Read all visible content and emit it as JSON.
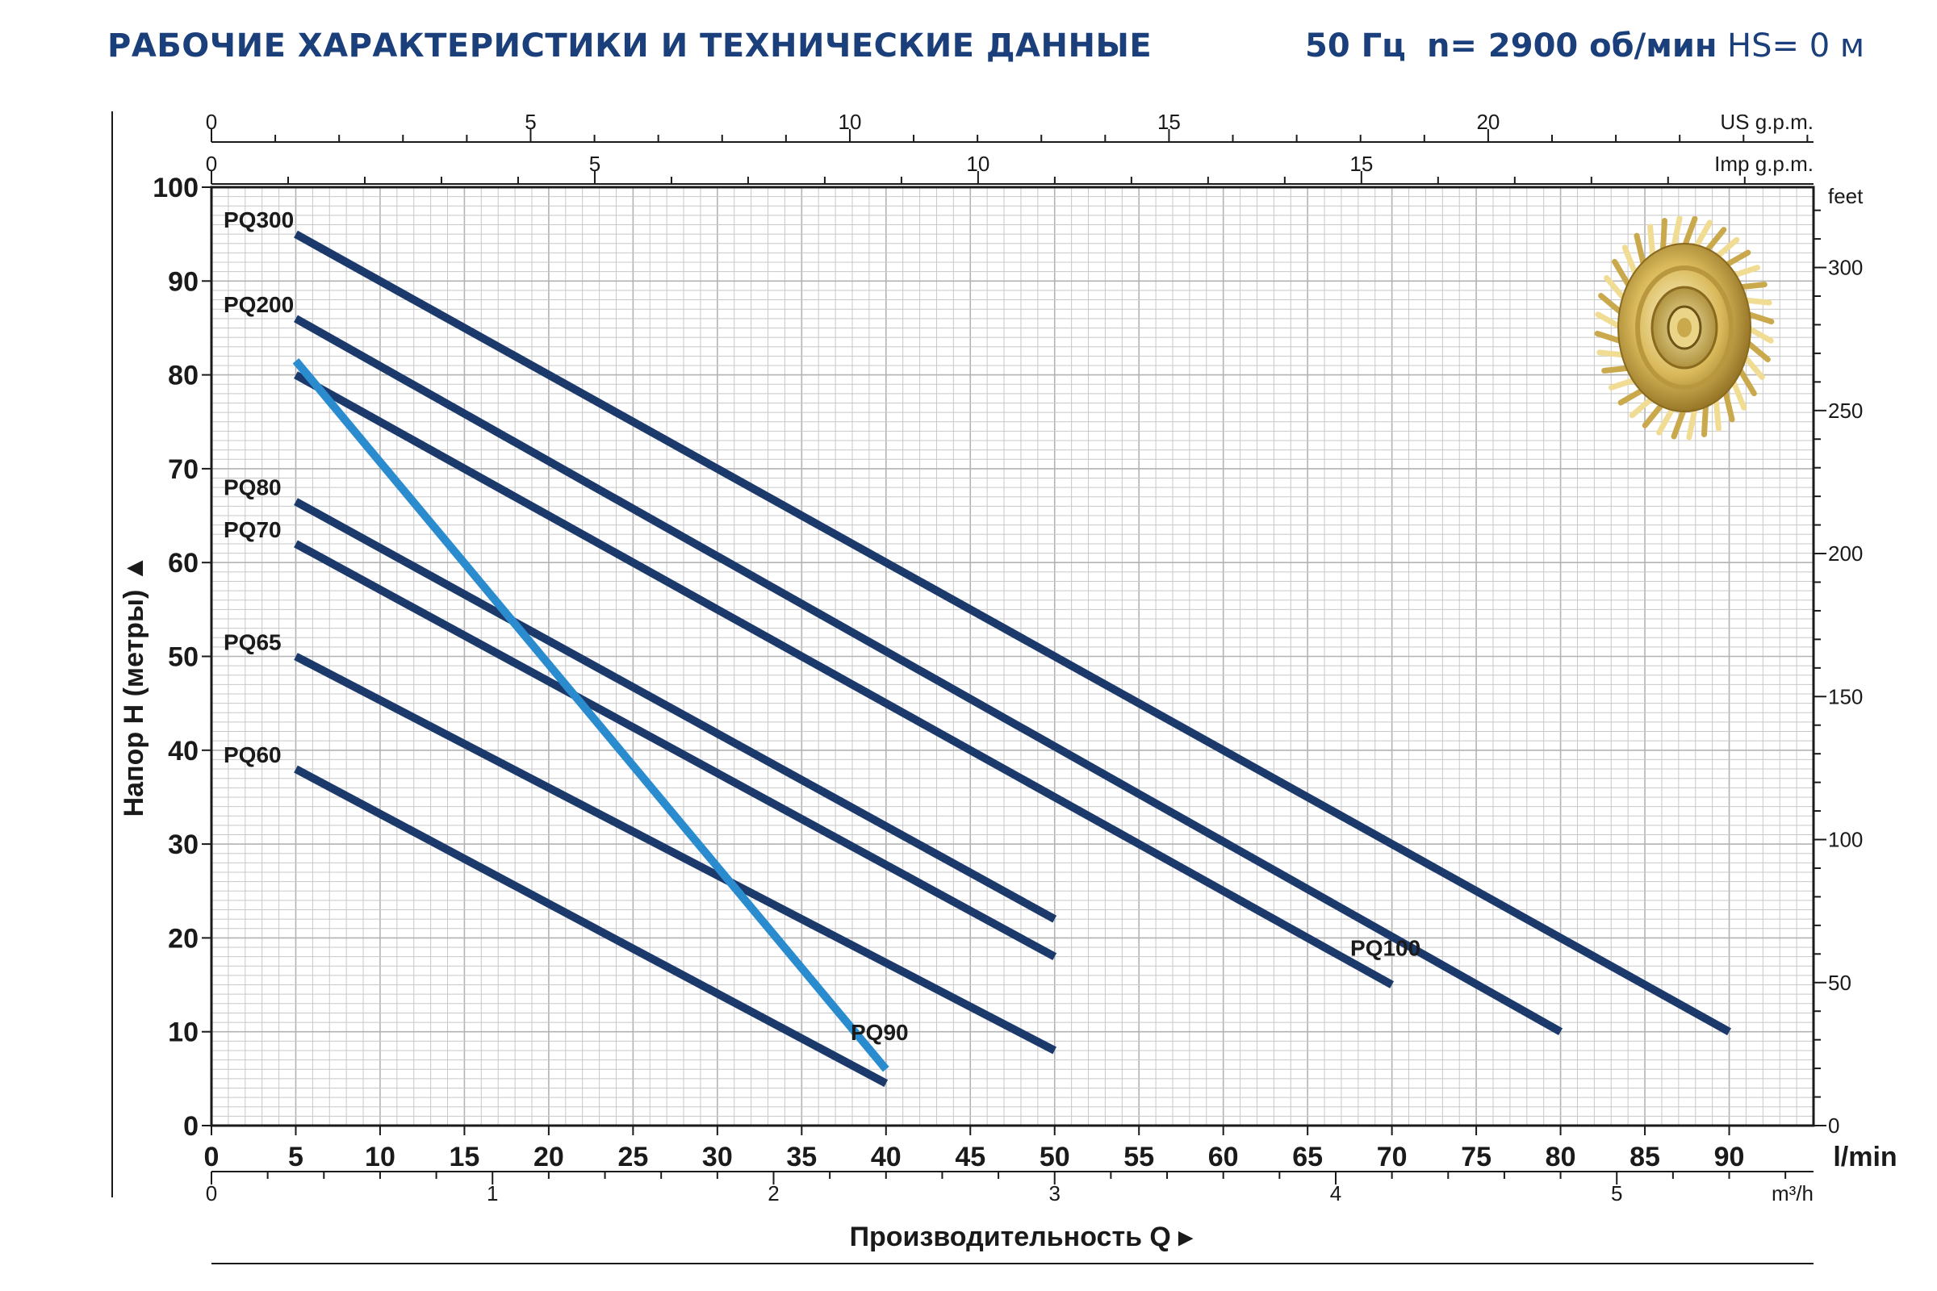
{
  "header": {
    "title": "РАБОЧИЕ ХАРАКТЕРИСТИКИ И ТЕХНИЧЕСКИЕ ДАННЫЕ",
    "frequency": "50 Гц",
    "speed": "n= 2900 об/мин",
    "hs": "HS= 0 м"
  },
  "colors": {
    "title": "#1a3f7a",
    "series_dark": "#1b3a6b",
    "series_light": "#2a8ccf",
    "grid": "#c8c8c8",
    "axis": "#1a1a1a"
  },
  "chart_data": {
    "type": "line",
    "xlabel": "Производительность Q",
    "ylabel": "Напор H (метры)",
    "xunit": "l/min",
    "xlim": [
      0,
      95
    ],
    "ylim": [
      0,
      100
    ],
    "x_ticks": [
      0,
      5,
      10,
      15,
      20,
      25,
      30,
      35,
      40,
      45,
      50,
      55,
      60,
      65,
      70,
      75,
      80,
      85,
      90
    ],
    "y_ticks": [
      0,
      10,
      20,
      30,
      40,
      50,
      60,
      70,
      80,
      90,
      100
    ],
    "secondary_axes": {
      "us_gpm": {
        "label": "US g.p.m.",
        "ticks": [
          0,
          5,
          10,
          15,
          20
        ]
      },
      "imp_gpm": {
        "label": "Imp g.p.m.",
        "ticks": [
          0,
          5,
          10,
          15
        ]
      },
      "feet": {
        "label": "feet",
        "ticks": [
          0,
          50,
          100,
          150,
          200,
          250,
          300
        ]
      },
      "m3h": {
        "label": "m³/h",
        "ticks": [
          0,
          1,
          2,
          3,
          4,
          5
        ]
      }
    },
    "grid": true,
    "series": [
      {
        "name": "PQ300",
        "color": "dark",
        "label_pos": "left",
        "points": [
          [
            5,
            95
          ],
          [
            90,
            10
          ]
        ]
      },
      {
        "name": "PQ200",
        "color": "dark",
        "label_pos": "left",
        "points": [
          [
            5,
            86
          ],
          [
            80,
            10
          ]
        ]
      },
      {
        "name": "PQ100",
        "color": "dark",
        "label_pos": "end",
        "points": [
          [
            5,
            80
          ],
          [
            70,
            15
          ]
        ]
      },
      {
        "name": "PQ80",
        "color": "dark",
        "label_pos": "left",
        "points": [
          [
            5,
            66.5
          ],
          [
            50,
            22
          ]
        ]
      },
      {
        "name": "PQ70",
        "color": "dark",
        "label_pos": "left",
        "points": [
          [
            5,
            62
          ],
          [
            50,
            18
          ]
        ]
      },
      {
        "name": "PQ65",
        "color": "dark",
        "label_pos": "left",
        "points": [
          [
            5,
            50
          ],
          [
            50,
            8
          ]
        ]
      },
      {
        "name": "PQ60",
        "color": "dark",
        "label_pos": "left",
        "points": [
          [
            5,
            38
          ],
          [
            40,
            4.5
          ]
        ]
      },
      {
        "name": "PQ90",
        "color": "light",
        "label_pos": "end",
        "points": [
          [
            5,
            81.5
          ],
          [
            40,
            6
          ]
        ]
      }
    ]
  }
}
